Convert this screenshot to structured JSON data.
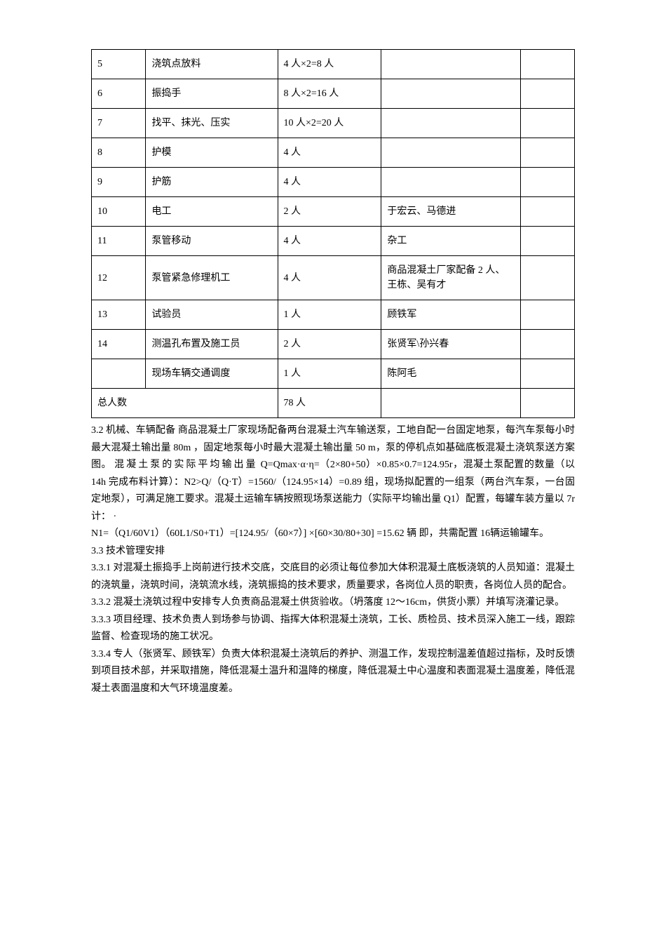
{
  "table": {
    "rows": [
      {
        "c0": "5",
        "c1": "浇筑点放料",
        "c2": "4 人×2=8 人",
        "c3": "",
        "c4": ""
      },
      {
        "c0": "6",
        "c1": "振捣手",
        "c2": "8 人×2=16 人",
        "c3": "",
        "c4": ""
      },
      {
        "c0": "7",
        "c1": "找平、抹光、压实",
        "c2": "10 人×2=20 人",
        "c3": "",
        "c4": ""
      },
      {
        "c0": "8",
        "c1": "护模",
        "c2": "4 人",
        "c3": "",
        "c4": ""
      },
      {
        "c0": "9",
        "c1": "护筋",
        "c2": "4 人",
        "c3": "",
        "c4": ""
      },
      {
        "c0": "10",
        "c1": "电工",
        "c2": "2 人",
        "c3": "于宏云、马德进",
        "c4": ""
      },
      {
        "c0": "11",
        "c1": "泵管移动",
        "c2": "4 人",
        "c3": "杂工",
        "c4": ""
      },
      {
        "c0": "12",
        "c1": "泵管紧急修理机工",
        "c2": "4 人",
        "c3": "商品混凝土厂家配备 2 人、王栋、吴有才",
        "c4": ""
      },
      {
        "c0": "13",
        "c1": "试验员",
        "c2": "1 人",
        "c3": "顾铁军",
        "c4": ""
      },
      {
        "c0": "14",
        "c1": "测温孔布置及施工员",
        "c2": "2 人",
        "c3": "张贤军\\孙兴春",
        "c4": ""
      },
      {
        "c0": "",
        "c1": "现场车辆交通调度",
        "c2": "1 人",
        "c3": "陈阿毛",
        "c4": ""
      }
    ],
    "total_label": "总人数",
    "total_value": "78 人"
  },
  "paragraphs": {
    "p1a": "3.2 机械、车辆配备 商品混凝土厂家现场配备两台混凝土汽车输送泵，工地自配一台固定地泵，每汽车泵每小时最大混凝土输出量 80m ，固定地泵每小时最大混凝土输出量 50 m，泵的停机点如基础底板混凝土浇筑泵送方案图。",
    "p1b": "混凝土泵的实际平均输出量",
    "p1c": "Q=Qmax·α·η=（2×80+50）×0.85×0.7=124.95r，混凝土泵配置的数量（以 14h 完成布料计算）：N2>Q/（Q·T）=1560/（124.95×14）=0.89 组，现场拟配置的一组泵（两台汽车泵，一台固定地泵），可满足施工要求。混凝土运输车辆按照现场泵送能力（实际平均输出量 Q1）配置，每罐车装方量以 7r计： ·",
    "p2": "N1=（Q1/60V1）（60L1/S0+T1）=[124.95/（60×7）] ×[60×30/80+30]   =15.62 辆 即，共需配置 16辆运输罐车。",
    "p3": "3.3 技术管理安排",
    "p4": "3.3.1 对混凝土振捣手上岗前进行技术交底，交底目的必须让每位参加大体积混凝土底板浇筑的人员知道：混凝土的浇筑量，浇筑时间，浇筑流水线，浇筑振捣的技术要求，质量要求，各岗位人员的职责，各岗位人员的配合。",
    "p5": "3.3.2 混凝土浇筑过程中安排专人负责商品混凝土供货验收。（坍落度 12～16cm，供货小票）并填写浇灌记录。",
    "p6": "3.3.3 项目经理、技术负责人到场参与协调、指挥大体积混凝土浇筑，工长、质检员、技术员深入施工一线，跟踪监督、检查现场的施工状况。",
    "p7": "3.3.4 专人（张贤军、顾铁军）负责大体积混凝土浇筑后的养护、测温工作，发现控制温差值超过指标，及时反馈到项目技术部，并采取措施，降低混凝土温升和温降的梯度，降低混凝土中心温度和表面混凝土温度差，降低混凝土表面温度和大气环境温度差。"
  }
}
